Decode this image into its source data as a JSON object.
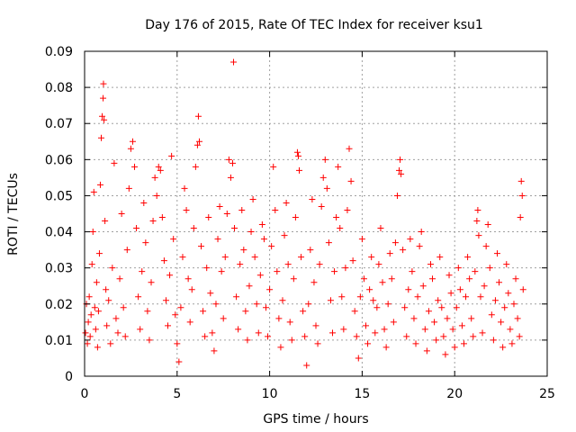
{
  "chart_data": {
    "type": "scatter",
    "title": "Day 176 of 2015, Rate Of TEC Index for receiver ksu1",
    "xlabel": "GPS time / hours",
    "ylabel": "ROTI / TECUs",
    "xlim": [
      0,
      25
    ],
    "ylim": [
      0,
      0.09
    ],
    "xticks": [
      "0",
      "5",
      "10",
      "15",
      "20",
      "25"
    ],
    "yticks": [
      "0",
      "0.01",
      "0.02",
      "0.03",
      "0.04",
      "0.05",
      "0.06",
      "0.07",
      "0.08",
      "0.09"
    ],
    "grid": true,
    "marker": "+",
    "marker_color": "#ff0000",
    "series": [
      {
        "points": [
          [
            0.05,
            0.012
          ],
          [
            0.1,
            0.02
          ],
          [
            0.15,
            0.009
          ],
          [
            0.2,
            0.015
          ],
          [
            0.25,
            0.022
          ],
          [
            0.3,
            0.011
          ],
          [
            0.35,
            0.017
          ],
          [
            0.4,
            0.031
          ],
          [
            0.45,
            0.04
          ],
          [
            0.5,
            0.051
          ],
          [
            0.55,
            0.019
          ],
          [
            0.6,
            0.013
          ],
          [
            0.65,
            0.026
          ],
          [
            0.7,
            0.008
          ],
          [
            0.75,
            0.018
          ],
          [
            0.8,
            0.034
          ],
          [
            0.85,
            0.053
          ],
          [
            0.9,
            0.066
          ],
          [
            0.95,
            0.072
          ],
          [
            1.0,
            0.077
          ],
          [
            1.02,
            0.081
          ],
          [
            1.05,
            0.071
          ],
          [
            1.1,
            0.043
          ],
          [
            1.15,
            0.024
          ],
          [
            1.2,
            0.014
          ],
          [
            1.3,
            0.021
          ],
          [
            1.4,
            0.009
          ],
          [
            1.5,
            0.03
          ],
          [
            1.6,
            0.059
          ],
          [
            1.7,
            0.016
          ],
          [
            1.8,
            0.012
          ],
          [
            1.9,
            0.027
          ],
          [
            2.0,
            0.045
          ],
          [
            2.1,
            0.019
          ],
          [
            2.2,
            0.011
          ],
          [
            2.3,
            0.035
          ],
          [
            2.4,
            0.052
          ],
          [
            2.5,
            0.063
          ],
          [
            2.6,
            0.065
          ],
          [
            2.7,
            0.058
          ],
          [
            2.8,
            0.041
          ],
          [
            2.9,
            0.022
          ],
          [
            3.0,
            0.013
          ],
          [
            3.1,
            0.029
          ],
          [
            3.2,
            0.048
          ],
          [
            3.3,
            0.037
          ],
          [
            3.4,
            0.018
          ],
          [
            3.5,
            0.01
          ],
          [
            3.6,
            0.026
          ],
          [
            3.7,
            0.043
          ],
          [
            3.8,
            0.055
          ],
          [
            3.9,
            0.05
          ],
          [
            4.0,
            0.058
          ],
          [
            4.1,
            0.057
          ],
          [
            4.2,
            0.044
          ],
          [
            4.3,
            0.032
          ],
          [
            4.4,
            0.021
          ],
          [
            4.5,
            0.014
          ],
          [
            4.6,
            0.028
          ],
          [
            4.7,
            0.061
          ],
          [
            4.8,
            0.038
          ],
          [
            4.9,
            0.017
          ],
          [
            5.0,
            0.009
          ],
          [
            5.1,
            0.004
          ],
          [
            5.2,
            0.019
          ],
          [
            5.3,
            0.033
          ],
          [
            5.4,
            0.052
          ],
          [
            5.5,
            0.046
          ],
          [
            5.6,
            0.027
          ],
          [
            5.7,
            0.015
          ],
          [
            5.8,
            0.024
          ],
          [
            5.9,
            0.041
          ],
          [
            6.0,
            0.058
          ],
          [
            6.1,
            0.064
          ],
          [
            6.15,
            0.072
          ],
          [
            6.2,
            0.065
          ],
          [
            6.3,
            0.036
          ],
          [
            6.4,
            0.018
          ],
          [
            6.5,
            0.011
          ],
          [
            6.6,
            0.03
          ],
          [
            6.7,
            0.044
          ],
          [
            6.8,
            0.023
          ],
          [
            6.9,
            0.012
          ],
          [
            7.0,
            0.007
          ],
          [
            7.1,
            0.02
          ],
          [
            7.2,
            0.038
          ],
          [
            7.3,
            0.047
          ],
          [
            7.4,
            0.029
          ],
          [
            7.5,
            0.016
          ],
          [
            7.6,
            0.033
          ],
          [
            7.7,
            0.045
          ],
          [
            7.8,
            0.06
          ],
          [
            7.9,
            0.055
          ],
          [
            8.0,
            0.059
          ],
          [
            8.05,
            0.087
          ],
          [
            8.1,
            0.041
          ],
          [
            8.2,
            0.022
          ],
          [
            8.3,
            0.013
          ],
          [
            8.4,
            0.031
          ],
          [
            8.5,
            0.046
          ],
          [
            8.6,
            0.035
          ],
          [
            8.7,
            0.018
          ],
          [
            8.8,
            0.01
          ],
          [
            8.9,
            0.025
          ],
          [
            9.0,
            0.04
          ],
          [
            9.1,
            0.049
          ],
          [
            9.2,
            0.033
          ],
          [
            9.3,
            0.02
          ],
          [
            9.4,
            0.012
          ],
          [
            9.5,
            0.028
          ],
          [
            9.6,
            0.042
          ],
          [
            9.7,
            0.038
          ],
          [
            9.8,
            0.019
          ],
          [
            9.9,
            0.011
          ],
          [
            10.0,
            0.024
          ],
          [
            10.1,
            0.036
          ],
          [
            10.2,
            0.058
          ],
          [
            10.3,
            0.046
          ],
          [
            10.4,
            0.029
          ],
          [
            10.5,
            0.016
          ],
          [
            10.6,
            0.008
          ],
          [
            10.7,
            0.021
          ],
          [
            10.8,
            0.039
          ],
          [
            10.9,
            0.048
          ],
          [
            11.0,
            0.031
          ],
          [
            11.1,
            0.015
          ],
          [
            11.2,
            0.01
          ],
          [
            11.3,
            0.027
          ],
          [
            11.4,
            0.044
          ],
          [
            11.5,
            0.062
          ],
          [
            11.55,
            0.061
          ],
          [
            11.6,
            0.057
          ],
          [
            11.7,
            0.033
          ],
          [
            11.8,
            0.018
          ],
          [
            11.9,
            0.011
          ],
          [
            12.0,
            0.003
          ],
          [
            12.1,
            0.02
          ],
          [
            12.2,
            0.035
          ],
          [
            12.3,
            0.049
          ],
          [
            12.4,
            0.026
          ],
          [
            12.5,
            0.014
          ],
          [
            12.6,
            0.009
          ],
          [
            12.7,
            0.031
          ],
          [
            12.8,
            0.047
          ],
          [
            12.9,
            0.055
          ],
          [
            13.0,
            0.06
          ],
          [
            13.1,
            0.052
          ],
          [
            13.2,
            0.037
          ],
          [
            13.3,
            0.021
          ],
          [
            13.4,
            0.012
          ],
          [
            13.5,
            0.029
          ],
          [
            13.6,
            0.044
          ],
          [
            13.7,
            0.058
          ],
          [
            13.8,
            0.041
          ],
          [
            13.9,
            0.022
          ],
          [
            14.0,
            0.013
          ],
          [
            14.1,
            0.03
          ],
          [
            14.2,
            0.046
          ],
          [
            14.3,
            0.063
          ],
          [
            14.4,
            0.054
          ],
          [
            14.5,
            0.032
          ],
          [
            14.6,
            0.018
          ],
          [
            14.7,
            0.011
          ],
          [
            14.8,
            0.005
          ],
          [
            14.9,
            0.022
          ],
          [
            15.0,
            0.038
          ],
          [
            15.1,
            0.027
          ],
          [
            15.2,
            0.014
          ],
          [
            15.3,
            0.009
          ],
          [
            15.4,
            0.024
          ],
          [
            15.5,
            0.033
          ],
          [
            15.6,
            0.021
          ],
          [
            15.7,
            0.012
          ],
          [
            15.8,
            0.019
          ],
          [
            15.9,
            0.031
          ],
          [
            16.0,
            0.041
          ],
          [
            16.1,
            0.026
          ],
          [
            16.2,
            0.013
          ],
          [
            16.3,
            0.008
          ],
          [
            16.4,
            0.02
          ],
          [
            16.5,
            0.034
          ],
          [
            16.6,
            0.027
          ],
          [
            16.7,
            0.015
          ],
          [
            16.8,
            0.037
          ],
          [
            16.9,
            0.05
          ],
          [
            17.0,
            0.057
          ],
          [
            17.05,
            0.06
          ],
          [
            17.1,
            0.056
          ],
          [
            17.2,
            0.035
          ],
          [
            17.3,
            0.019
          ],
          [
            17.4,
            0.011
          ],
          [
            17.5,
            0.024
          ],
          [
            17.6,
            0.038
          ],
          [
            17.7,
            0.029
          ],
          [
            17.8,
            0.016
          ],
          [
            17.9,
            0.009
          ],
          [
            18.0,
            0.022
          ],
          [
            18.1,
            0.036
          ],
          [
            18.2,
            0.04
          ],
          [
            18.3,
            0.025
          ],
          [
            18.4,
            0.013
          ],
          [
            18.5,
            0.007
          ],
          [
            18.6,
            0.018
          ],
          [
            18.7,
            0.031
          ],
          [
            18.8,
            0.027
          ],
          [
            18.9,
            0.015
          ],
          [
            19.0,
            0.01
          ],
          [
            19.1,
            0.021
          ],
          [
            19.2,
            0.033
          ],
          [
            19.3,
            0.019
          ],
          [
            19.4,
            0.011
          ],
          [
            19.5,
            0.006
          ],
          [
            19.6,
            0.016
          ],
          [
            19.7,
            0.028
          ],
          [
            19.8,
            0.023
          ],
          [
            19.9,
            0.013
          ],
          [
            20.0,
            0.008
          ],
          [
            20.1,
            0.019
          ],
          [
            20.2,
            0.03
          ],
          [
            20.3,
            0.024
          ],
          [
            20.4,
            0.014
          ],
          [
            20.5,
            0.009
          ],
          [
            20.6,
            0.022
          ],
          [
            20.7,
            0.033
          ],
          [
            20.8,
            0.027
          ],
          [
            20.9,
            0.016
          ],
          [
            21.0,
            0.011
          ],
          [
            21.1,
            0.029
          ],
          [
            21.2,
            0.043
          ],
          [
            21.25,
            0.046
          ],
          [
            21.3,
            0.039
          ],
          [
            21.4,
            0.022
          ],
          [
            21.5,
            0.012
          ],
          [
            21.6,
            0.025
          ],
          [
            21.7,
            0.036
          ],
          [
            21.8,
            0.042
          ],
          [
            21.9,
            0.03
          ],
          [
            22.0,
            0.017
          ],
          [
            22.1,
            0.01
          ],
          [
            22.2,
            0.021
          ],
          [
            22.3,
            0.034
          ],
          [
            22.4,
            0.026
          ],
          [
            22.5,
            0.015
          ],
          [
            22.6,
            0.008
          ],
          [
            22.7,
            0.019
          ],
          [
            22.8,
            0.031
          ],
          [
            22.9,
            0.023
          ],
          [
            23.0,
            0.013
          ],
          [
            23.1,
            0.009
          ],
          [
            23.2,
            0.02
          ],
          [
            23.3,
            0.027
          ],
          [
            23.4,
            0.016
          ],
          [
            23.5,
            0.011
          ],
          [
            23.55,
            0.044
          ],
          [
            23.6,
            0.054
          ],
          [
            23.65,
            0.05
          ],
          [
            23.7,
            0.024
          ]
        ]
      }
    ]
  }
}
